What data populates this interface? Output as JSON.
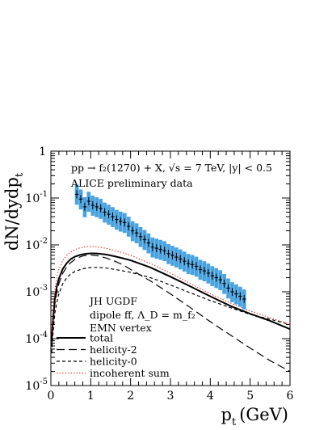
{
  "chart_data": {
    "type": "line",
    "title": "",
    "ylabel": "dN/dydp",
    "ylabel_sub": "t",
    "xlabel": "p",
    "xlabel_sub": "t",
    "xlabel_unit": "(GeV)",
    "xlim": [
      0,
      6
    ],
    "ylim": [
      1e-05,
      1
    ],
    "yscale": "log",
    "grid": false,
    "x_ticks": [
      "0",
      "1",
      "2",
      "3",
      "4",
      "5",
      "6"
    ],
    "y_ticks": [
      {
        "mantissa": "1",
        "exp": ""
      },
      {
        "mantissa": "10",
        "exp": "-1"
      },
      {
        "mantissa": "10",
        "exp": "-2"
      },
      {
        "mantissa": "10",
        "exp": "-3"
      },
      {
        "mantissa": "10",
        "exp": "-4"
      },
      {
        "mantissa": "10",
        "exp": "-5"
      }
    ],
    "annotations": {
      "process_line": "pp → f₂(1270) + X,  √s = 7 TeV,  |y| < 0.5",
      "data_source": "ALICE preliminary data",
      "model_1": "JH UGDF",
      "model_2": "dipole ff, Λ_D = m_f₂",
      "model_3": "EMN vertex"
    },
    "legend_placement": "bottom-left",
    "legend": [
      {
        "label": "total",
        "style": "solid"
      },
      {
        "label": "helicity-2",
        "style": "long-dash"
      },
      {
        "label": "helicity-0",
        "style": "short-dash"
      },
      {
        "label": "incoherent sum",
        "style": "red-dotted"
      }
    ],
    "data_points": {
      "x": [
        0.65,
        0.75,
        0.85,
        0.95,
        1.05,
        1.15,
        1.25,
        1.35,
        1.45,
        1.55,
        1.65,
        1.75,
        1.85,
        1.95,
        2.05,
        2.15,
        2.25,
        2.35,
        2.45,
        2.55,
        2.65,
        2.75,
        2.85,
        2.95,
        3.05,
        3.15,
        3.25,
        3.35,
        3.45,
        3.55,
        3.65,
        3.75,
        3.85,
        3.95,
        4.05,
        4.15,
        4.25,
        4.35,
        4.45,
        4.55,
        4.65,
        4.75,
        4.85
      ],
      "y": [
        0.12,
        0.095,
        0.065,
        0.085,
        0.07,
        0.065,
        0.06,
        0.05,
        0.045,
        0.04,
        0.035,
        0.032,
        0.03,
        0.025,
        0.02,
        0.018,
        0.015,
        0.013,
        0.011,
        0.009,
        0.0085,
        0.008,
        0.0075,
        0.0065,
        0.006,
        0.0055,
        0.005,
        0.0045,
        0.004,
        0.0038,
        0.0035,
        0.003,
        0.0028,
        0.0025,
        0.0022,
        0.002,
        0.0018,
        0.0015,
        0.0012,
        0.001,
        0.0009,
        0.0008,
        0.0007
      ],
      "yerr_low_factor": 0.6,
      "yerr_high_factor": 1.6,
      "color": "#4aa3df"
    },
    "series": [
      {
        "name": "total",
        "x": [
          0.02,
          0.05,
          0.1,
          0.15,
          0.2,
          0.3,
          0.4,
          0.5,
          0.6,
          0.7,
          0.8,
          0.9,
          1.0,
          1.1,
          1.2,
          1.4,
          1.6,
          1.8,
          2.0,
          2.5,
          3.0,
          3.5,
          4.0,
          4.5,
          5.0,
          5.5,
          6.0
        ],
        "y": [
          9e-05,
          0.00025,
          0.0007,
          0.0013,
          0.0019,
          0.0031,
          0.0041,
          0.005,
          0.0056,
          0.006,
          0.0063,
          0.0065,
          0.0066,
          0.0066,
          0.0065,
          0.0062,
          0.0057,
          0.0052,
          0.0047,
          0.0033,
          0.0021,
          0.0013,
          0.0008,
          0.0005,
          0.00034,
          0.00024,
          0.00016
        ]
      },
      {
        "name": "helicity-2",
        "x": [
          0.02,
          0.05,
          0.1,
          0.15,
          0.2,
          0.3,
          0.4,
          0.5,
          0.6,
          0.7,
          0.8,
          0.9,
          1.0,
          1.1,
          1.2,
          1.4,
          1.6,
          1.8,
          2.0,
          2.5,
          3.0,
          3.5,
          4.0,
          4.5,
          5.0,
          5.5,
          6.0
        ],
        "y": [
          7e-05,
          0.0002,
          0.00055,
          0.001,
          0.0015,
          0.0025,
          0.0034,
          0.0042,
          0.0049,
          0.0054,
          0.0058,
          0.006,
          0.0061,
          0.006,
          0.0058,
          0.0052,
          0.0045,
          0.0038,
          0.003,
          0.0017,
          0.0009,
          0.00046,
          0.00023,
          0.00012,
          6.3e-05,
          3.4e-05,
          2e-05
        ]
      },
      {
        "name": "helicity-0",
        "x": [
          0.02,
          0.05,
          0.1,
          0.15,
          0.2,
          0.3,
          0.4,
          0.5,
          0.6,
          0.7,
          0.8,
          0.9,
          1.0,
          1.2,
          1.4,
          1.6,
          1.8,
          2.0,
          2.5,
          3.0,
          3.5,
          4.0,
          4.5,
          5.0,
          5.5,
          6.0
        ],
        "y": [
          5e-05,
          0.00012,
          0.00035,
          0.0006,
          0.0009,
          0.0015,
          0.002,
          0.0024,
          0.0027,
          0.0029,
          0.0031,
          0.0032,
          0.0033,
          0.0033,
          0.0032,
          0.003,
          0.0028,
          0.0026,
          0.002,
          0.0014,
          0.00095,
          0.00065,
          0.00046,
          0.00033,
          0.00026,
          0.0002
        ]
      },
      {
        "name": "incoherent sum",
        "x": [
          0.02,
          0.05,
          0.1,
          0.15,
          0.2,
          0.3,
          0.4,
          0.5,
          0.6,
          0.7,
          0.8,
          0.9,
          1.0,
          1.1,
          1.2,
          1.4,
          1.6,
          1.8,
          2.0,
          2.5,
          3.0,
          3.5,
          4.0,
          4.5,
          5.0,
          5.5,
          6.0
        ],
        "y": [
          0.00012,
          0.00035,
          0.0011,
          0.0021,
          0.003,
          0.0047,
          0.006,
          0.0071,
          0.0079,
          0.0085,
          0.0089,
          0.0092,
          0.0093,
          0.0092,
          0.009,
          0.0084,
          0.0076,
          0.0068,
          0.006,
          0.004,
          0.0025,
          0.0015,
          0.0009,
          0.00058,
          0.00039,
          0.00028,
          0.0002
        ]
      }
    ],
    "colors": {
      "total": "#000000",
      "helicity-2": "#000000",
      "helicity-0": "#000000",
      "incoherent sum": "#e8231f",
      "data": "#4aa3df"
    }
  }
}
